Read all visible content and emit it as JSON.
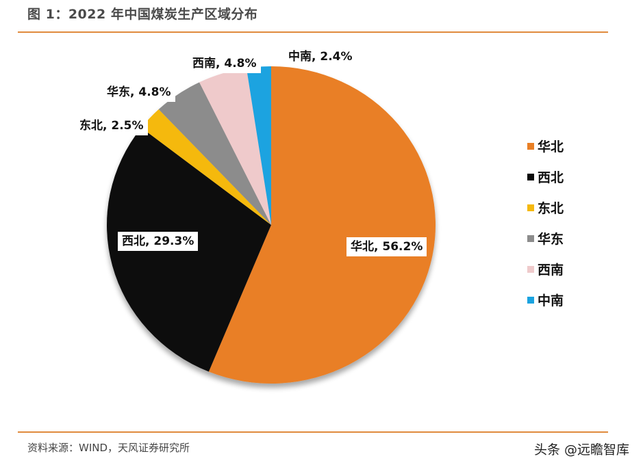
{
  "header": {
    "title": "图 1：2022 年中国煤炭生产区域分布"
  },
  "footer": {
    "source": "资料来源：WIND，天风证券研究所",
    "watermark": "头条 @远瞻智库"
  },
  "chart_data": {
    "type": "pie",
    "title": "2022 年中国煤炭生产区域分布",
    "start_angle": "12 o'clock, clockwise",
    "categories": [
      "华北",
      "西北",
      "东北",
      "华东",
      "西南",
      "中南"
    ],
    "values": [
      56.2,
      29.3,
      2.5,
      4.8,
      4.8,
      2.4
    ],
    "unit": "%",
    "colors": [
      "#e97f25",
      "#0a0a0a",
      "#f5b90f",
      "#8c8c8c",
      "#efcacb",
      "#1aa3e0"
    ],
    "data_labels": [
      "华北, 56.2%",
      "西北, 29.3%",
      "东北, 2.5%",
      "华东, 4.8%",
      "西南, 4.8%",
      "中南, 2.4%"
    ],
    "legend_position": "right"
  },
  "legend": {
    "items": [
      {
        "label": "华北",
        "color": "#e97f25"
      },
      {
        "label": "西北",
        "color": "#0a0a0a"
      },
      {
        "label": "东北",
        "color": "#f5b90f"
      },
      {
        "label": "华东",
        "color": "#8c8c8c"
      },
      {
        "label": "西南",
        "color": "#efcacb"
      },
      {
        "label": "中南",
        "color": "#1aa3e0"
      }
    ]
  }
}
